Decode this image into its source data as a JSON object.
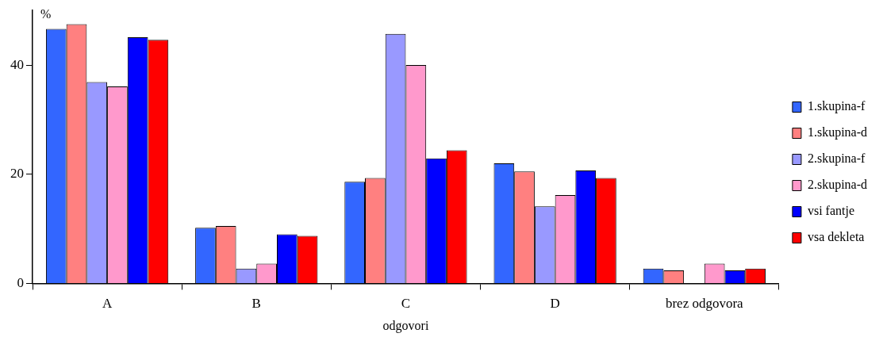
{
  "chart_data": {
    "type": "bar",
    "xlabel": "odgovori",
    "ylabel": "%",
    "categories": [
      "A",
      "B",
      "C",
      "D",
      "brez odgovora"
    ],
    "series": [
      {
        "name": "1.skupina-f",
        "color": "#3366ff",
        "values": [
          46.6,
          10.2,
          18.6,
          22.0,
          2.7
        ]
      },
      {
        "name": "1.skupina-d",
        "color": "#ff8080",
        "values": [
          47.5,
          10.5,
          19.3,
          20.5,
          2.4
        ]
      },
      {
        "name": "2.skupina-f",
        "color": "#9999ff",
        "values": [
          36.9,
          2.7,
          45.7,
          14.1,
          null
        ]
      },
      {
        "name": "2.skupina-d",
        "color": "#ff99cc",
        "values": [
          36.1,
          3.6,
          40.0,
          16.2,
          3.6
        ]
      },
      {
        "name": "vsi fantje",
        "color": "#0000ff",
        "values": [
          45.1,
          9.0,
          22.9,
          20.7,
          2.4
        ]
      },
      {
        "name": "vsa dekleta",
        "color": "#ff0000",
        "values": [
          44.6,
          8.7,
          24.4,
          19.3,
          2.7
        ]
      }
    ],
    "ylim": [
      0,
      50
    ],
    "yticks": [
      0,
      20,
      40
    ],
    "grid": false,
    "legend": "right"
  }
}
